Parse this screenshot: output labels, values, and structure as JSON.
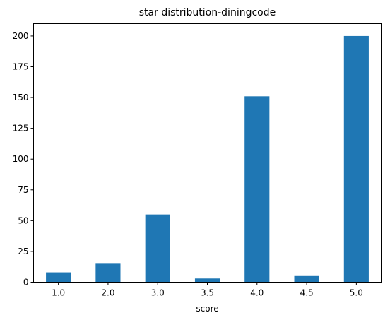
{
  "chart_data": {
    "type": "bar",
    "title": "star distribution-diningcode",
    "xlabel": "score",
    "ylabel": "",
    "categories": [
      "1.0",
      "2.0",
      "3.0",
      "3.5",
      "4.0",
      "4.5",
      "5.0"
    ],
    "values": [
      8,
      15,
      55,
      3,
      151,
      5,
      200
    ],
    "ylim": [
      0,
      210
    ],
    "yticks": [
      0,
      25,
      50,
      75,
      100,
      125,
      150,
      175,
      200
    ],
    "grid": false,
    "legend": "none",
    "bar_color": "#1f77b4"
  }
}
